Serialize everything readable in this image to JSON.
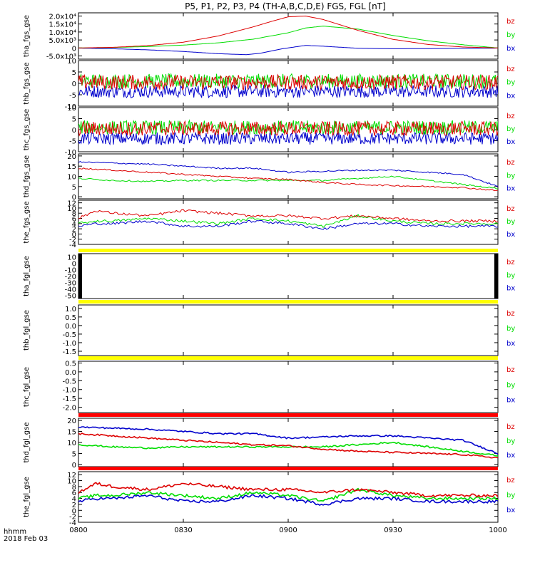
{
  "chart_data": {
    "type": "line",
    "title": "P5, P1, P2, P3, P4 (TH-A,B,C,D,E) FGS, FGL [nT]",
    "xlabel": "hhmm",
    "date_label": "2018 Feb 03",
    "x_range": [
      "08:00",
      "10:00"
    ],
    "x_ticks": [
      "0800",
      "0830",
      "0900",
      "0930",
      "1000"
    ],
    "legend": {
      "placement": "right",
      "entries": [
        "bz",
        "by",
        "bx"
      ]
    },
    "colors": {
      "bz": "#dd0000",
      "by": "#00dd00",
      "bx": "#0000cc",
      "flag_yellow": "#ffff00",
      "flag_red": "#ff0000"
    },
    "panels": [
      {
        "id": "tha_fgs_gse",
        "ylabel": "tha_fgs_gse",
        "ylim": [
          -7000,
          22000
        ],
        "ticks": [
          "2.0x10⁴",
          "1.5x10⁴",
          "1.0x10⁴",
          "5.0x10³",
          "0",
          "-5.0x10³"
        ],
        "tick_values": [
          20000,
          15000,
          10000,
          5000,
          0,
          -5000
        ],
        "series": [
          {
            "name": "bz",
            "x": [
              0,
              10,
              20,
              30,
              40,
              50,
              55,
              60,
              65,
              70,
              80,
              90,
              100,
              110,
              120
            ],
            "values": [
              0,
              400,
              1500,
              3600,
              7500,
              13200,
              16500,
              19500,
              20000,
              17800,
              11000,
              5400,
              2200,
              600,
              0
            ]
          },
          {
            "name": "by",
            "x": [
              0,
              10,
              20,
              30,
              40,
              50,
              60,
              65,
              70,
              80,
              90,
              100,
              110,
              120
            ],
            "values": [
              0,
              300,
              900,
              1800,
              3200,
              5500,
              9500,
              12500,
              13700,
              11800,
              7800,
              4500,
              2000,
              0
            ]
          },
          {
            "name": "bx",
            "x": [
              0,
              10,
              20,
              30,
              40,
              48,
              52,
              58,
              65,
              70,
              80,
              90,
              100,
              110,
              120
            ],
            "values": [
              -100,
              -500,
              -1200,
              -2200,
              -3600,
              -4200,
              -3300,
              -600,
              1600,
              1100,
              -200,
              -500,
              -400,
              -200,
              -100
            ]
          }
        ]
      },
      {
        "id": "thb_fgs_gse",
        "ylabel": "thb_fgs_gse",
        "ylim": [
          -10,
          10
        ],
        "ticks": [
          "10",
          "5",
          "0",
          "-5",
          "-10"
        ],
        "tick_values": [
          10,
          5,
          0,
          -5,
          -10
        ],
        "noise": {
          "bz": [
            0.5,
            3.3
          ],
          "by": [
            1.0,
            3.2
          ],
          "bx": [
            -3.5,
            2.8
          ]
        }
      },
      {
        "id": "thc_fgs_gse",
        "ylabel": "thc_fgs_gse",
        "ylim": [
          -10,
          10
        ],
        "ticks": [
          "10",
          "5",
          "0",
          "-5",
          "-10"
        ],
        "tick_values": [
          10,
          5,
          0,
          -5,
          -10
        ],
        "noise": {
          "bz": [
            0.5,
            3.3
          ],
          "by": [
            1.0,
            3.2
          ],
          "bx": [
            -4.0,
            2.8
          ]
        }
      },
      {
        "id": "thd_fgs_gse",
        "ylabel": "thd_fgs_gse",
        "ylim": [
          -1,
          21
        ],
        "ticks": [
          "20",
          "15",
          "10",
          "5",
          "0"
        ],
        "tick_values": [
          20,
          15,
          10,
          5,
          0
        ],
        "series": [
          {
            "name": "bz",
            "x": [
              0,
              10,
              20,
              30,
              40,
              50,
              60,
              70,
              80,
              90,
              100,
              110,
              120
            ],
            "values": [
              14,
              13,
              12,
              11,
              10,
              9,
              8.5,
              7,
              6,
              5.5,
              5,
              4.5,
              3
            ]
          },
          {
            "name": "by",
            "x": [
              0,
              10,
              20,
              30,
              40,
              50,
              60,
              70,
              80,
              90,
              100,
              110,
              120
            ],
            "values": [
              9,
              8,
              7.5,
              8,
              8,
              8,
              8,
              8,
              9,
              10,
              8,
              6,
              4
            ]
          },
          {
            "name": "bx",
            "x": [
              0,
              10,
              20,
              30,
              40,
              50,
              60,
              70,
              80,
              90,
              100,
              110,
              120
            ],
            "values": [
              17,
              16.5,
              16,
              15,
              14,
              14,
              12,
              12.5,
              13,
              13,
              12,
              11,
              5
            ]
          }
        ]
      },
      {
        "id": "the_fgs_gse",
        "ylabel": "the_fgs_gse",
        "ylim": [
          -4,
          13
        ],
        "ticks": [
          "12",
          "10",
          "8",
          "6",
          "4",
          "2",
          "0",
          "-2",
          "-4"
        ],
        "tick_values": [
          12,
          10,
          8,
          6,
          4,
          2,
          0,
          -2,
          -4
        ],
        "series": [
          {
            "name": "bz",
            "x": [
              0,
              5,
              10,
              20,
              30,
              40,
              50,
              60,
              70,
              80,
              90,
              100,
              110,
              120
            ],
            "values": [
              6,
              9,
              8,
              7,
              9,
              8,
              7,
              7,
              6,
              7,
              6,
              5,
              5,
              5
            ]
          },
          {
            "name": "by",
            "x": [
              0,
              5,
              10,
              20,
              30,
              40,
              50,
              60,
              70,
              80,
              90,
              100,
              110,
              120
            ],
            "values": [
              4,
              5,
              5,
              6,
              5,
              4,
              6,
              5,
              3,
              7,
              5,
              4,
              4,
              4
            ]
          },
          {
            "name": "bx",
            "x": [
              0,
              5,
              10,
              20,
              30,
              40,
              50,
              60,
              70,
              80,
              90,
              100,
              110,
              120
            ],
            "values": [
              3,
              4,
              4,
              5,
              3,
              3,
              5,
              4,
              2,
              4,
              4,
              3,
              3,
              3
            ]
          }
        ]
      },
      {
        "id": "tha_fgl_gse",
        "ylabel": "tha_fgl_gse",
        "ylim": [
          -55,
          15
        ],
        "ticks": [
          "10",
          "0",
          "-10",
          "-20",
          "-30",
          "-40",
          "-50"
        ],
        "tick_values": [
          10,
          0,
          -10,
          -20,
          -30,
          -40,
          -50
        ],
        "flag": "yellow",
        "empty": true
      },
      {
        "id": "thb_fgl_gse",
        "ylabel": "thb_fgl_gse",
        "ylim": [
          -1.75,
          1.2
        ],
        "ticks": [
          "1.0",
          "0.5",
          "0.0",
          "-0.5",
          "-1.0",
          "-1.5"
        ],
        "tick_values": [
          1.0,
          0.5,
          0.0,
          -0.5,
          -1.0,
          -1.5
        ],
        "flag": "yellow",
        "empty": true
      },
      {
        "id": "thc_fgl_gse",
        "ylabel": "thc_fgl_gse",
        "ylim": [
          -2.3,
          0.6
        ],
        "ticks": [
          "0.5",
          "0.0",
          "-0.5",
          "-1.0",
          "-1.5",
          "-2.0"
        ],
        "tick_values": [
          0.5,
          0.0,
          -0.5,
          -1.0,
          -1.5,
          -2.0
        ],
        "flag": "yellow",
        "empty": true
      },
      {
        "id": "thd_fgl_gse",
        "ylabel": "thd_fgl_gse",
        "ylim": [
          -1,
          21
        ],
        "ticks": [
          "20",
          "15",
          "10",
          "5",
          "0"
        ],
        "tick_values": [
          20,
          15,
          10,
          5,
          0
        ],
        "flag": "red",
        "series": [
          {
            "name": "bz",
            "x": [
              0,
              10,
              20,
              30,
              40,
              50,
              60,
              70,
              80,
              90,
              100,
              110,
              120
            ],
            "values": [
              14,
              13,
              12,
              11,
              10,
              9,
              8.5,
              7,
              6,
              5.5,
              5,
              4.5,
              3
            ]
          },
          {
            "name": "by",
            "x": [
              0,
              10,
              20,
              30,
              40,
              50,
              60,
              70,
              80,
              90,
              100,
              110,
              120
            ],
            "values": [
              9,
              8,
              7.5,
              8,
              8,
              8,
              8,
              8,
              9,
              10,
              8,
              6,
              4
            ]
          },
          {
            "name": "bx",
            "x": [
              0,
              10,
              20,
              30,
              40,
              50,
              60,
              70,
              80,
              90,
              100,
              110,
              120
            ],
            "values": [
              17,
              16.5,
              16,
              15,
              14,
              14,
              12,
              12.5,
              13,
              13,
              12,
              11,
              5
            ]
          }
        ]
      },
      {
        "id": "the_fgl_gse",
        "ylabel": "the_fgl_gse",
        "ylim": [
          -4,
          13
        ],
        "ticks": [
          "12",
          "10",
          "8",
          "6",
          "4",
          "2",
          "0",
          "-2",
          "-4"
        ],
        "tick_values": [
          12,
          10,
          8,
          6,
          4,
          2,
          0,
          -2,
          -4
        ],
        "flag": "red",
        "series": [
          {
            "name": "bz",
            "x": [
              0,
              5,
              10,
              20,
              30,
              40,
              50,
              60,
              70,
              80,
              90,
              100,
              110,
              120
            ],
            "values": [
              6,
              9,
              8,
              7,
              9,
              8,
              7,
              7,
              6,
              7,
              6,
              5,
              5,
              5
            ]
          },
          {
            "name": "by",
            "x": [
              0,
              5,
              10,
              20,
              30,
              40,
              50,
              60,
              70,
              80,
              90,
              100,
              110,
              120
            ],
            "values": [
              4,
              5,
              5,
              6,
              5,
              4,
              6,
              5,
              3,
              7,
              5,
              4,
              4,
              4
            ]
          },
          {
            "name": "bx",
            "x": [
              0,
              5,
              10,
              20,
              30,
              40,
              50,
              60,
              70,
              80,
              90,
              100,
              110,
              120
            ],
            "values": [
              3,
              4,
              4,
              5,
              3,
              3,
              5,
              4,
              2,
              4,
              4,
              3,
              3,
              3
            ]
          }
        ]
      }
    ]
  }
}
